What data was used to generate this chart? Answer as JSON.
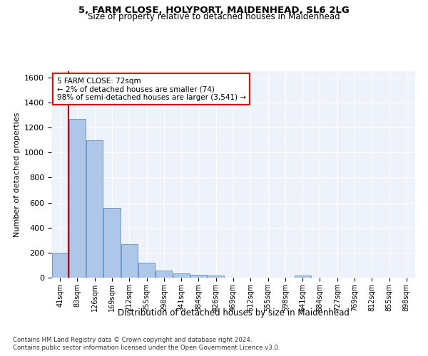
{
  "title1": "5, FARM CLOSE, HOLYPORT, MAIDENHEAD, SL6 2LG",
  "title2": "Size of property relative to detached houses in Maidenhead",
  "xlabel": "Distribution of detached houses by size in Maidenhead",
  "ylabel": "Number of detached properties",
  "footnote1": "Contains HM Land Registry data © Crown copyright and database right 2024.",
  "footnote2": "Contains public sector information licensed under the Open Government Licence v3.0.",
  "annotation_line1": "5 FARM CLOSE: 72sqm",
  "annotation_line2": "← 2% of detached houses are smaller (74)",
  "annotation_line3": "98% of semi-detached houses are larger (3,541) →",
  "bar_color": "#aec6e8",
  "bar_edge_color": "#5b8fc9",
  "marker_color": "#cc0000",
  "background_color": "#eef2fa",
  "categories": [
    "41sqm",
    "83sqm",
    "126sqm",
    "169sqm",
    "212sqm",
    "255sqm",
    "298sqm",
    "341sqm",
    "384sqm",
    "426sqm",
    "469sqm",
    "512sqm",
    "555sqm",
    "598sqm",
    "641sqm",
    "684sqm",
    "727sqm",
    "769sqm",
    "812sqm",
    "855sqm",
    "898sqm"
  ],
  "values": [
    200,
    1270,
    1100,
    555,
    265,
    120,
    58,
    35,
    22,
    15,
    0,
    0,
    0,
    0,
    15,
    0,
    0,
    0,
    0,
    0,
    0
  ],
  "ylim": [
    0,
    1650
  ],
  "figsize": [
    6.0,
    5.0
  ],
  "dpi": 100
}
